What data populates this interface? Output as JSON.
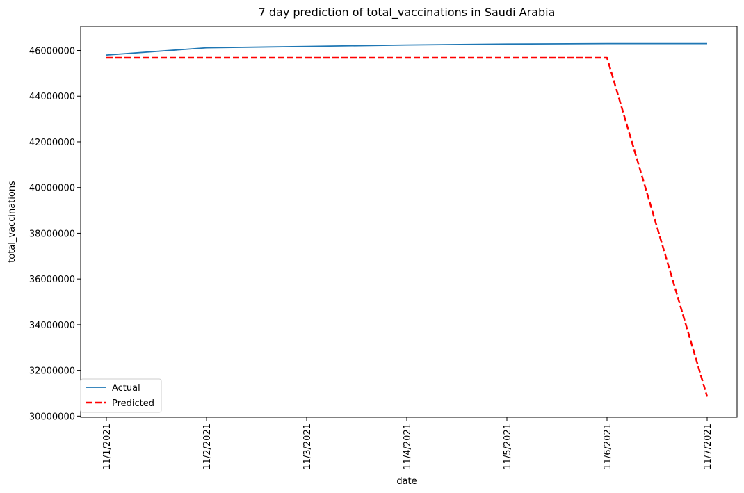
{
  "chart_data": {
    "type": "line",
    "title": "7 day prediction of total_vaccinations in Saudi Arabia",
    "xlabel": "date",
    "ylabel": "total_vaccinations",
    "categories": [
      "11/1/2021",
      "11/2/2021",
      "11/3/2021",
      "11/4/2021",
      "11/5/2021",
      "11/6/2021",
      "11/7/2021"
    ],
    "ylim": [
      29950000,
      47050000
    ],
    "yticks": [
      30000000,
      32000000,
      34000000,
      36000000,
      38000000,
      40000000,
      42000000,
      44000000,
      46000000
    ],
    "ytick_labels": [
      "30000000",
      "32000000",
      "34000000",
      "36000000",
      "38000000",
      "40000000",
      "42000000",
      "44000000",
      "46000000"
    ],
    "grid": false,
    "legend_position": "lower-left",
    "series": [
      {
        "name": "Actual",
        "color": "#1f77b4",
        "style": "solid",
        "values": [
          45800000,
          46120000,
          46180000,
          46240000,
          46280000,
          46300000,
          46300000
        ]
      },
      {
        "name": "Predicted",
        "color": "#ff0000",
        "style": "dashed",
        "values": [
          45680000,
          45680000,
          45680000,
          45680000,
          45680000,
          45680000,
          30850000
        ]
      }
    ]
  }
}
